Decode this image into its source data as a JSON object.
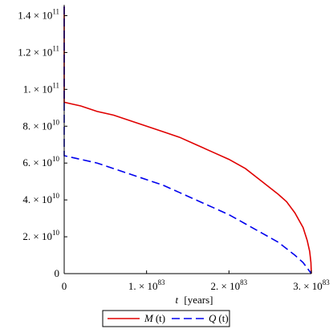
{
  "chart_data": {
    "type": "line",
    "title": "",
    "xlabel": {
      "var": "t",
      "unit": "[years]"
    },
    "ylabel": "",
    "xlim": [
      0,
      3e+83
    ],
    "ylim": [
      0,
      145000000000.0
    ],
    "x_ticks": [
      {
        "value": 0,
        "label": "0"
      },
      {
        "value": 1e+83,
        "mantissa": "1.",
        "base": "10",
        "exp": "83"
      },
      {
        "value": 2e+83,
        "mantissa": "2.",
        "base": "10",
        "exp": "83"
      },
      {
        "value": 3e+83,
        "mantissa": "3.",
        "base": "10",
        "exp": "83"
      }
    ],
    "y_ticks": [
      {
        "value": 0,
        "label": "0"
      },
      {
        "value": 20000000000.0,
        "mantissa": "2.",
        "base": "10",
        "exp": "10"
      },
      {
        "value": 40000000000.0,
        "mantissa": "4.",
        "base": "10",
        "exp": "10"
      },
      {
        "value": 60000000000.0,
        "mantissa": "6.",
        "base": "10",
        "exp": "10"
      },
      {
        "value": 80000000000.0,
        "mantissa": "8.",
        "base": "10",
        "exp": "10"
      },
      {
        "value": 100000000000.0,
        "mantissa": "1.",
        "base": "10",
        "exp": "11"
      },
      {
        "value": 120000000000.0,
        "mantissa": "1.2",
        "base": "10",
        "exp": "11"
      },
      {
        "value": 140000000000.0,
        "mantissa": "1.4",
        "base": "10",
        "exp": "11"
      }
    ],
    "grid": false,
    "legend_position": "bottom",
    "series": [
      {
        "name": "M(t)",
        "name_var": "M",
        "name_arg": "(t)",
        "color": "#e00000",
        "style": "solid",
        "x": [
          0,
          0,
          0,
          1e+82,
          2e+82,
          4e+82,
          6e+82,
          8e+82,
          1e+83,
          1.2e+83,
          1.4e+83,
          1.6e+83,
          1.8e+83,
          2e+83,
          2.2e+83,
          2.4e+83,
          2.6e+83,
          2.7e+83,
          2.8e+83,
          2.9e+83,
          2.95e+83,
          2.98e+83,
          2.995e+83,
          3e+83
        ],
        "y": [
          145000000000.0,
          110000000000.0,
          93000000000.0,
          92000000000.0,
          91000000000.0,
          88000000000.0,
          86000000000.0,
          83000000000.0,
          80000000000.0,
          77000000000.0,
          74000000000.0,
          70000000000.0,
          66000000000.0,
          62000000000.0,
          57000000000.0,
          50000000000.0,
          43000000000.0,
          39000000000.0,
          33000000000.0,
          25000000000.0,
          18000000000.0,
          12000000000.0,
          6000000000.0,
          0
        ]
      },
      {
        "name": "Q(t)",
        "name_var": "Q",
        "name_arg": "(t)",
        "color": "#0000ee",
        "style": "dashed",
        "x": [
          0,
          0,
          0,
          1e+82,
          2e+82,
          4e+82,
          6e+82,
          8e+82,
          1e+83,
          1.2e+83,
          1.4e+83,
          1.6e+83,
          1.8e+83,
          2e+83,
          2.2e+83,
          2.4e+83,
          2.6e+83,
          2.8e+83,
          2.9e+83,
          2.95e+83,
          3e+83
        ],
        "y": [
          145000000000.0,
          90000000000.0,
          64000000000.0,
          63000000000.0,
          62000000000.0,
          60000000000.0,
          57000000000.0,
          54000000000.0,
          51000000000.0,
          48000000000.0,
          44000000000.0,
          40000000000.0,
          36000000000.0,
          32000000000.0,
          27000000000.0,
          22000000000.0,
          17000000000.0,
          10000000000.0,
          6000000000.0,
          3000000000.0,
          0
        ]
      }
    ]
  }
}
